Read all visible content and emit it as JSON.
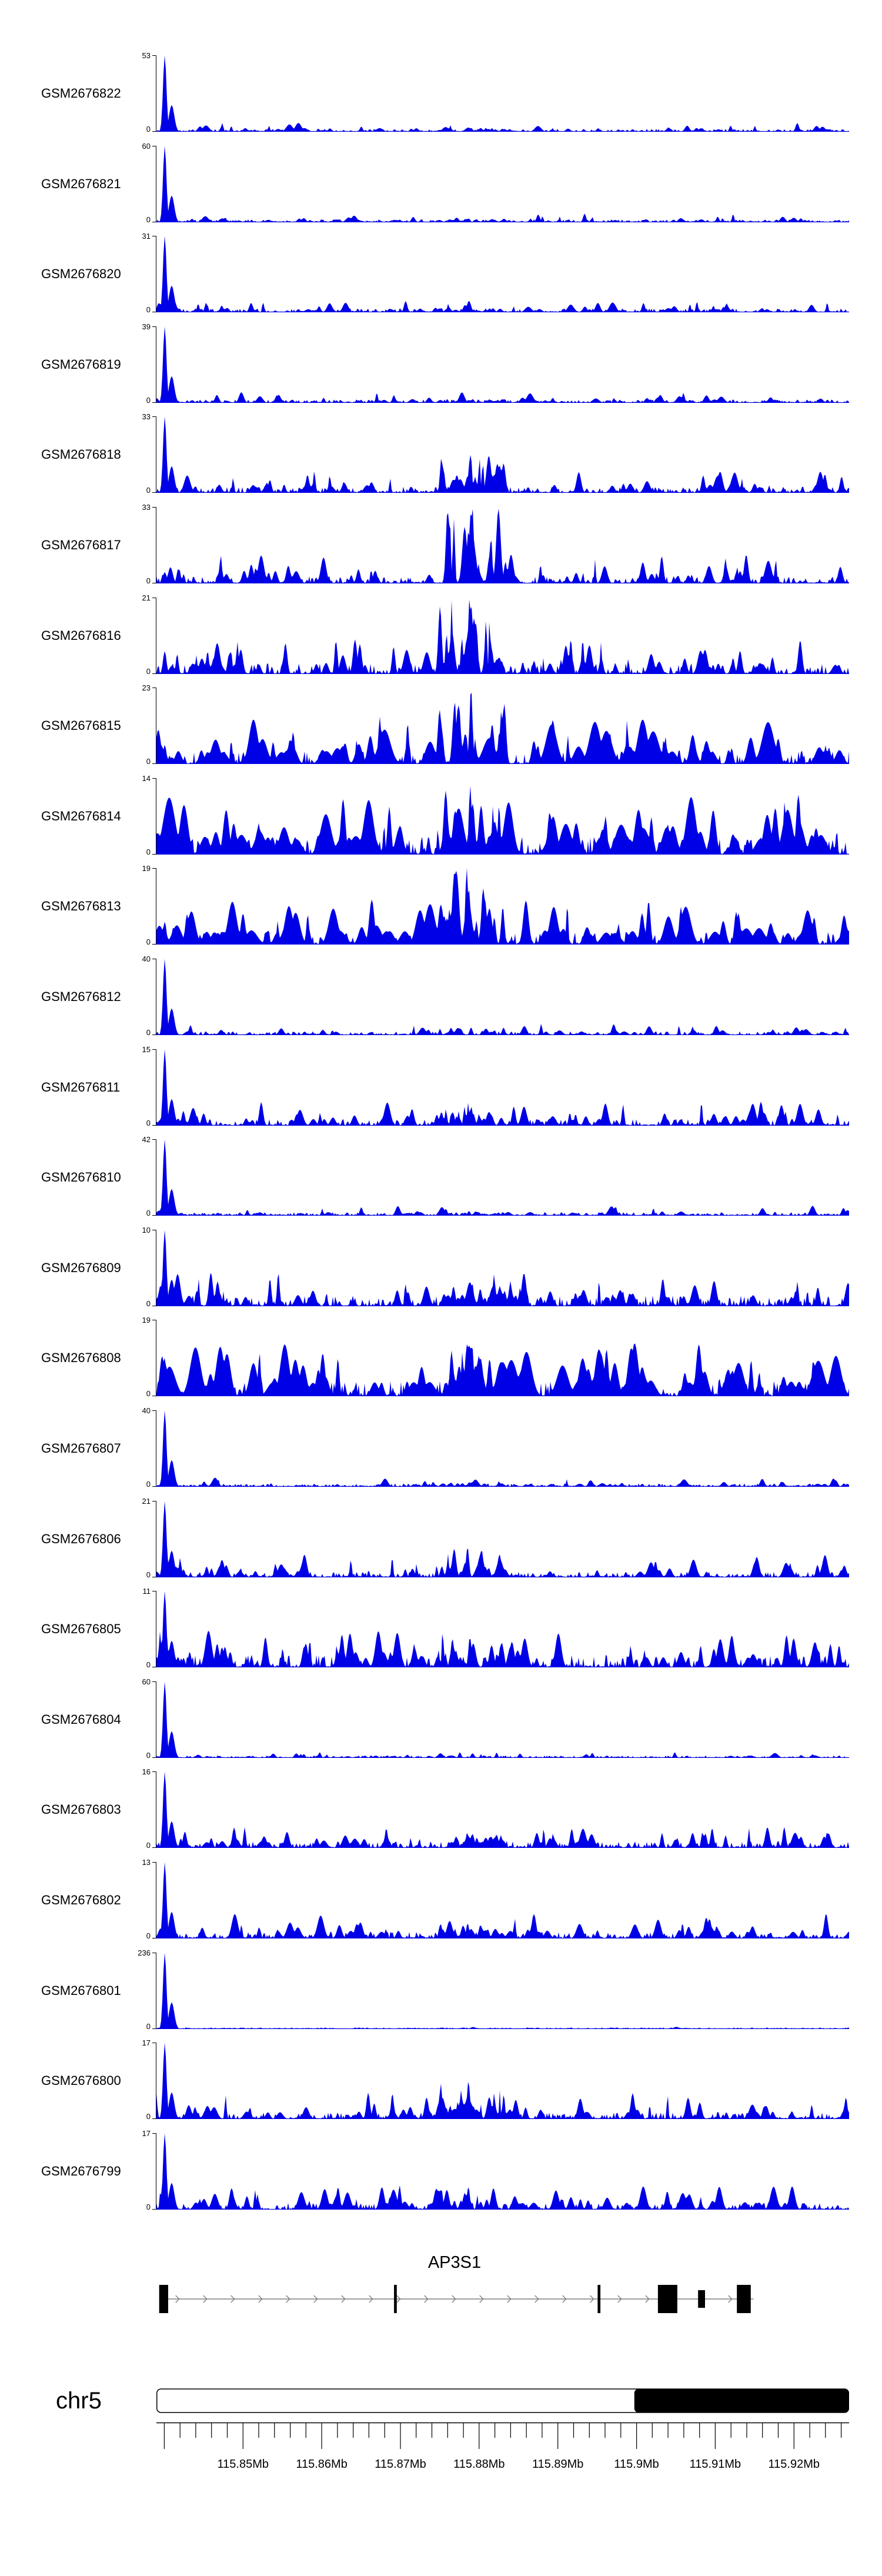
{
  "page": {
    "background": "#ffffff"
  },
  "colors": {
    "signal": "#0000e6",
    "axis": "#000000",
    "gene_line": "#808080",
    "exon": "#000000",
    "ideogram_band": "#000000"
  },
  "chart_data": {
    "type": "area",
    "description": "Genome browser coverage tracks (24 GEO samples) over the AP3S1 locus on chr5",
    "region": {
      "chromosome": "chr5",
      "start_mb": 115.839,
      "end_mb": 115.927,
      "unit": "Mb"
    },
    "tracks": [
      {
        "label": "GSM2676822",
        "ymax": 53,
        "ymin": 0,
        "left_spike": 1.0,
        "noise_level": 0.05,
        "spike_count": 45,
        "spike_amp": 0.12,
        "mid_cluster": 0.05,
        "seed": 101
      },
      {
        "label": "GSM2676821",
        "ymax": 60,
        "ymin": 0,
        "left_spike": 1.0,
        "noise_level": 0.05,
        "spike_count": 45,
        "spike_amp": 0.12,
        "mid_cluster": 0.05,
        "seed": 202
      },
      {
        "label": "GSM2676820",
        "ymax": 31,
        "ymin": 0,
        "left_spike": 1.0,
        "noise_level": 0.07,
        "spike_count": 55,
        "spike_amp": 0.16,
        "mid_cluster": 0.06,
        "seed": 303
      },
      {
        "label": "GSM2676819",
        "ymax": 39,
        "ymin": 0,
        "left_spike": 1.0,
        "noise_level": 0.06,
        "spike_count": 50,
        "spike_amp": 0.14,
        "mid_cluster": 0.05,
        "seed": 404
      },
      {
        "label": "GSM2676818",
        "ymax": 33,
        "ymin": 0,
        "left_spike": 1.0,
        "noise_level": 0.12,
        "spike_count": 65,
        "spike_amp": 0.3,
        "mid_cluster": 0.5,
        "seed": 505
      },
      {
        "label": "GSM2676817",
        "ymax": 33,
        "ymin": 0,
        "left_spike": 0.15,
        "noise_level": 0.14,
        "spike_count": 70,
        "spike_amp": 0.38,
        "mid_cluster": 1.0,
        "seed": 606
      },
      {
        "label": "GSM2676816",
        "ymax": 21,
        "ymin": 0,
        "left_spike": 0.3,
        "noise_level": 0.22,
        "spike_count": 75,
        "spike_amp": 0.48,
        "mid_cluster": 1.0,
        "seed": 707
      },
      {
        "label": "GSM2676815",
        "ymax": 23,
        "ymin": 0,
        "left_spike": 0.25,
        "noise_level": 0.28,
        "spike_count": 85,
        "spike_amp": 0.62,
        "mid_cluster": 1.0,
        "seed": 808
      },
      {
        "label": "GSM2676814",
        "ymax": 14,
        "ymin": 0,
        "left_spike": 0.45,
        "noise_level": 0.38,
        "spike_count": 95,
        "spike_amp": 0.8,
        "mid_cluster": 0.9,
        "seed": 909
      },
      {
        "label": "GSM2676813",
        "ymax": 19,
        "ymin": 0,
        "left_spike": 0.3,
        "noise_level": 0.26,
        "spike_count": 85,
        "spike_amp": 0.6,
        "mid_cluster": 1.0,
        "seed": 1010
      },
      {
        "label": "GSM2676812",
        "ymax": 40,
        "ymin": 0,
        "left_spike": 1.0,
        "noise_level": 0.07,
        "spike_count": 50,
        "spike_amp": 0.15,
        "mid_cluster": 0.1,
        "seed": 1111
      },
      {
        "label": "GSM2676811",
        "ymax": 15,
        "ymin": 0,
        "left_spike": 1.0,
        "noise_level": 0.13,
        "spike_count": 65,
        "spike_amp": 0.32,
        "mid_cluster": 0.25,
        "seed": 1212
      },
      {
        "label": "GSM2676810",
        "ymax": 42,
        "ymin": 0,
        "left_spike": 1.0,
        "noise_level": 0.06,
        "spike_count": 45,
        "spike_amp": 0.13,
        "mid_cluster": 0.06,
        "seed": 1313
      },
      {
        "label": "GSM2676809",
        "ymax": 10,
        "ymin": 0,
        "left_spike": 1.0,
        "noise_level": 0.22,
        "spike_count": 75,
        "spike_amp": 0.45,
        "mid_cluster": 0.3,
        "seed": 1414
      },
      {
        "label": "GSM2676808",
        "ymax": 19,
        "ymin": 0,
        "left_spike": 0.5,
        "noise_level": 0.32,
        "spike_count": 90,
        "spike_amp": 0.7,
        "mid_cluster": 0.7,
        "seed": 1515
      },
      {
        "label": "GSM2676807",
        "ymax": 40,
        "ymin": 0,
        "left_spike": 1.0,
        "noise_level": 0.06,
        "spike_count": 45,
        "spike_amp": 0.12,
        "mid_cluster": 0.06,
        "seed": 1616
      },
      {
        "label": "GSM2676806",
        "ymax": 21,
        "ymin": 0,
        "left_spike": 1.0,
        "noise_level": 0.11,
        "spike_count": 60,
        "spike_amp": 0.3,
        "mid_cluster": 0.4,
        "seed": 1717
      },
      {
        "label": "GSM2676805",
        "ymax": 11,
        "ymin": 0,
        "left_spike": 1.0,
        "noise_level": 0.26,
        "spike_count": 80,
        "spike_amp": 0.5,
        "mid_cluster": 0.4,
        "seed": 1818
      },
      {
        "label": "GSM2676804",
        "ymax": 60,
        "ymin": 0,
        "left_spike": 1.0,
        "noise_level": 0.04,
        "spike_count": 40,
        "spike_amp": 0.08,
        "mid_cluster": 0.03,
        "seed": 1919
      },
      {
        "label": "GSM2676803",
        "ymax": 16,
        "ymin": 0,
        "left_spike": 1.0,
        "noise_level": 0.13,
        "spike_count": 65,
        "spike_amp": 0.3,
        "mid_cluster": 0.2,
        "seed": 2020
      },
      {
        "label": "GSM2676802",
        "ymax": 13,
        "ymin": 0,
        "left_spike": 1.0,
        "noise_level": 0.13,
        "spike_count": 65,
        "spike_amp": 0.35,
        "mid_cluster": 0.2,
        "seed": 2121
      },
      {
        "label": "GSM2676801",
        "ymax": 236,
        "ymin": 0,
        "left_spike": 1.0,
        "noise_level": 0.02,
        "spike_count": 25,
        "spike_amp": 0.03,
        "mid_cluster": 0.01,
        "seed": 2222
      },
      {
        "label": "GSM2676800",
        "ymax": 17,
        "ymin": 0,
        "left_spike": 1.0,
        "noise_level": 0.13,
        "spike_count": 65,
        "spike_amp": 0.35,
        "mid_cluster": 0.5,
        "seed": 2323
      },
      {
        "label": "GSM2676799",
        "ymax": 17,
        "ymin": 0,
        "left_spike": 1.0,
        "noise_level": 0.13,
        "spike_count": 65,
        "spike_amp": 0.32,
        "mid_cluster": 0.3,
        "seed": 2424
      }
    ],
    "gene_track": {
      "gene_name": "AP3S1",
      "strand": "+",
      "line_span": [
        0.004,
        0.862
      ],
      "exons": [
        {
          "x": 0.004,
          "w": 0.013,
          "h": "tall"
        },
        {
          "x": 0.343,
          "w": 0.004,
          "h": "tall"
        },
        {
          "x": 0.637,
          "w": 0.004,
          "h": "tall"
        },
        {
          "x": 0.724,
          "w": 0.028,
          "h": "tall"
        },
        {
          "x": 0.782,
          "w": 0.01,
          "h": "mid"
        },
        {
          "x": 0.838,
          "w": 0.02,
          "h": "tall"
        }
      ]
    },
    "ideogram": {
      "chromosome_label": "chr5",
      "black_band": [
        0.69,
        1.0
      ]
    },
    "axis": {
      "start_mb": 115.839,
      "end_mb": 115.927,
      "minor_step_mb": 0.002,
      "major_ticks": [
        {
          "value": 115.85,
          "label": "115.85Mb"
        },
        {
          "value": 115.86,
          "label": "115.86Mb"
        },
        {
          "value": 115.87,
          "label": "115.87Mb"
        },
        {
          "value": 115.88,
          "label": "115.88Mb"
        },
        {
          "value": 115.89,
          "label": "115.89Mb"
        },
        {
          "value": 115.9,
          "label": "115.9Mb"
        },
        {
          "value": 115.91,
          "label": "115.91Mb"
        },
        {
          "value": 115.92,
          "label": "115.92Mb"
        }
      ]
    }
  }
}
